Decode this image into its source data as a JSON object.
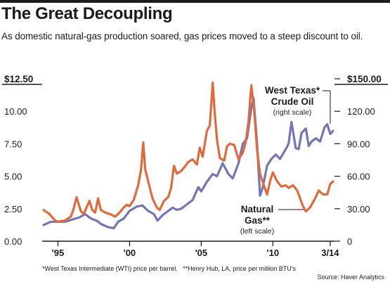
{
  "title": "The Great Decoupling",
  "subtitle": "As domestic natural-gas production soared, gas prices moved to a steep discount to oil.",
  "footnote_wti": "*West Texas Intermediate (WTI) price per barrel.",
  "footnote_hh": "**Henry Hub, LA, price per million BTU's",
  "source": "Source: Haver Analytics",
  "chart_data": {
    "type": "line",
    "left_axis": {
      "label": "(left scale)",
      "ylim": [
        0,
        12.5
      ],
      "ticks": [
        0,
        2.5,
        5,
        7.5,
        10,
        12.5
      ],
      "tick_labels": [
        "0.00",
        "2.50",
        "5.00",
        "7.50",
        "10.00",
        "$12.50"
      ]
    },
    "right_axis": {
      "label": "(right scale)",
      "ylim": [
        0,
        150
      ],
      "ticks": [
        0,
        30,
        60,
        90,
        120,
        150
      ],
      "tick_labels": [
        "0",
        "30.00",
        "60.00",
        "90.00",
        "120.00",
        "$150.00"
      ]
    },
    "x_axis": {
      "xlim": [
        1993.9,
        2014.3
      ],
      "ticks": [
        1995,
        2000,
        2005,
        2010,
        2014
      ],
      "tick_labels": [
        "'95",
        "'00",
        "'05",
        "'10",
        "3/14"
      ]
    },
    "grid": false,
    "series": [
      {
        "name": "Natural Gas**",
        "axis": "left",
        "color": "#e06a3c",
        "x": [
          1994.0,
          1994.4,
          1994.8,
          1995.0,
          1995.5,
          1995.9,
          1996.1,
          1996.3,
          1996.6,
          1996.8,
          1997.0,
          1997.2,
          1997.4,
          1997.6,
          1997.8,
          1998.0,
          1998.3,
          1998.6,
          1998.8,
          1999.0,
          1999.3,
          1999.6,
          1999.8,
          2000.0,
          2000.3,
          2000.6,
          2000.8,
          2000.95,
          2001.1,
          2001.3,
          2001.6,
          2001.9,
          2002.1,
          2002.4,
          2002.7,
          2002.9,
          2003.1,
          2003.3,
          2003.6,
          2003.9,
          2004.1,
          2004.4,
          2004.7,
          2004.9,
          2005.1,
          2005.4,
          2005.6,
          2005.8,
          2005.95,
          2006.1,
          2006.3,
          2006.6,
          2006.8,
          2007.0,
          2007.3,
          2007.6,
          2007.9,
          2008.1,
          2008.3,
          2008.5,
          2008.7,
          2008.9,
          2009.1,
          2009.4,
          2009.6,
          2009.8,
          2010.0,
          2010.3,
          2010.6,
          2010.9,
          2011.1,
          2011.4,
          2011.7,
          2011.9,
          2012.1,
          2012.3,
          2012.6,
          2012.9,
          2013.2,
          2013.5,
          2013.8,
          2014.0,
          2014.2
        ],
        "values": [
          2.4,
          2.1,
          1.6,
          1.5,
          1.6,
          1.9,
          2.5,
          3.4,
          2.3,
          2.1,
          2.6,
          3.1,
          2.4,
          2.2,
          3.3,
          2.4,
          2.2,
          2.1,
          2.0,
          1.9,
          2.2,
          2.6,
          2.8,
          2.7,
          3.2,
          4.3,
          5.5,
          7.6,
          5.5,
          4.6,
          3.3,
          2.6,
          2.4,
          3.1,
          3.4,
          4.1,
          5.8,
          5.2,
          5.4,
          5.8,
          6.1,
          6.3,
          5.9,
          7.2,
          6.5,
          8.5,
          8.9,
          12.2,
          9.8,
          7.8,
          6.4,
          6.2,
          7.3,
          7.5,
          7.4,
          6.3,
          6.8,
          7.6,
          9.2,
          12.0,
          10.0,
          7.0,
          5.2,
          4.2,
          3.6,
          4.6,
          5.3,
          4.6,
          4.2,
          4.3,
          4.1,
          4.3,
          3.9,
          3.3,
          2.7,
          2.3,
          2.6,
          3.2,
          3.9,
          3.6,
          3.6,
          4.4,
          4.6
        ]
      },
      {
        "name": "West Texas* Crude Oil",
        "axis": "right",
        "color": "#7575b3",
        "x": [
          1994.0,
          1994.5,
          1995.0,
          1995.5,
          1996.0,
          1996.5,
          1996.9,
          1997.3,
          1997.7,
          1998.0,
          1998.5,
          1998.9,
          1999.2,
          1999.6,
          2000.0,
          2000.5,
          2000.9,
          2001.3,
          2001.7,
          2001.95,
          2002.3,
          2002.7,
          2003.0,
          2003.3,
          2003.6,
          2004.0,
          2004.4,
          2004.8,
          2005.0,
          2005.4,
          2005.8,
          2006.1,
          2006.5,
          2006.9,
          2007.2,
          2007.6,
          2007.9,
          2008.2,
          2008.5,
          2008.65,
          2008.9,
          2009.1,
          2009.3,
          2009.6,
          2009.9,
          2010.2,
          2010.5,
          2010.9,
          2011.1,
          2011.3,
          2011.6,
          2011.8,
          2012.0,
          2012.3,
          2012.5,
          2012.7,
          2013.0,
          2013.3,
          2013.6,
          2013.8,
          2014.0,
          2014.2
        ],
        "values": [
          15,
          18,
          18,
          18,
          20,
          22,
          25,
          21,
          19,
          16,
          13,
          12,
          18,
          21,
          28,
          32,
          33,
          28,
          25,
          19,
          24,
          28,
          31,
          29,
          30,
          34,
          38,
          50,
          46,
          55,
          62,
          60,
          72,
          62,
          58,
          72,
          90,
          95,
          123,
          132,
          90,
          42,
          50,
          70,
          76,
          80,
          76,
          85,
          90,
          110,
          86,
          85,
          100,
          104,
          88,
          92,
          95,
          92,
          105,
          108,
          99,
          102
        ]
      }
    ],
    "annotations": [
      {
        "series": "West Texas* Crude Oil",
        "title": [
          "West Texas*",
          "Crude Oil"
        ],
        "scale": "(right scale)"
      },
      {
        "series": "Natural Gas**",
        "title": [
          "Natural",
          "Gas**"
        ],
        "scale": "(left scale)"
      }
    ]
  }
}
